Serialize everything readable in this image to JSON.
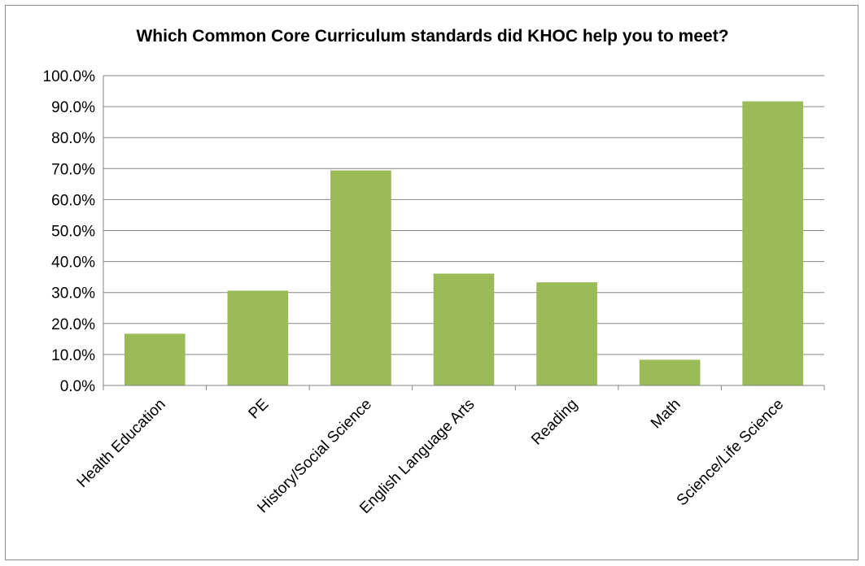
{
  "chart_data": {
    "type": "bar",
    "title": "Which Common Core Curriculum standards did KHOC help you to meet?",
    "xlabel": "",
    "ylabel": "",
    "categories": [
      "Health Education",
      "PE",
      "History/Social Science",
      "English Language Arts",
      "Reading",
      "Math",
      "Science/Life Science"
    ],
    "values": [
      16.7,
      30.6,
      69.4,
      36.1,
      33.3,
      8.3,
      91.7
    ],
    "ylim": [
      0,
      100
    ],
    "yticks": [
      "0.0%",
      "10.0%",
      "20.0%",
      "30.0%",
      "40.0%",
      "50.0%",
      "60.0%",
      "70.0%",
      "80.0%",
      "90.0%",
      "100.0%"
    ],
    "grid": true,
    "legend": "none",
    "bar_color": "#9bbb59",
    "grid_color": "#868686"
  }
}
